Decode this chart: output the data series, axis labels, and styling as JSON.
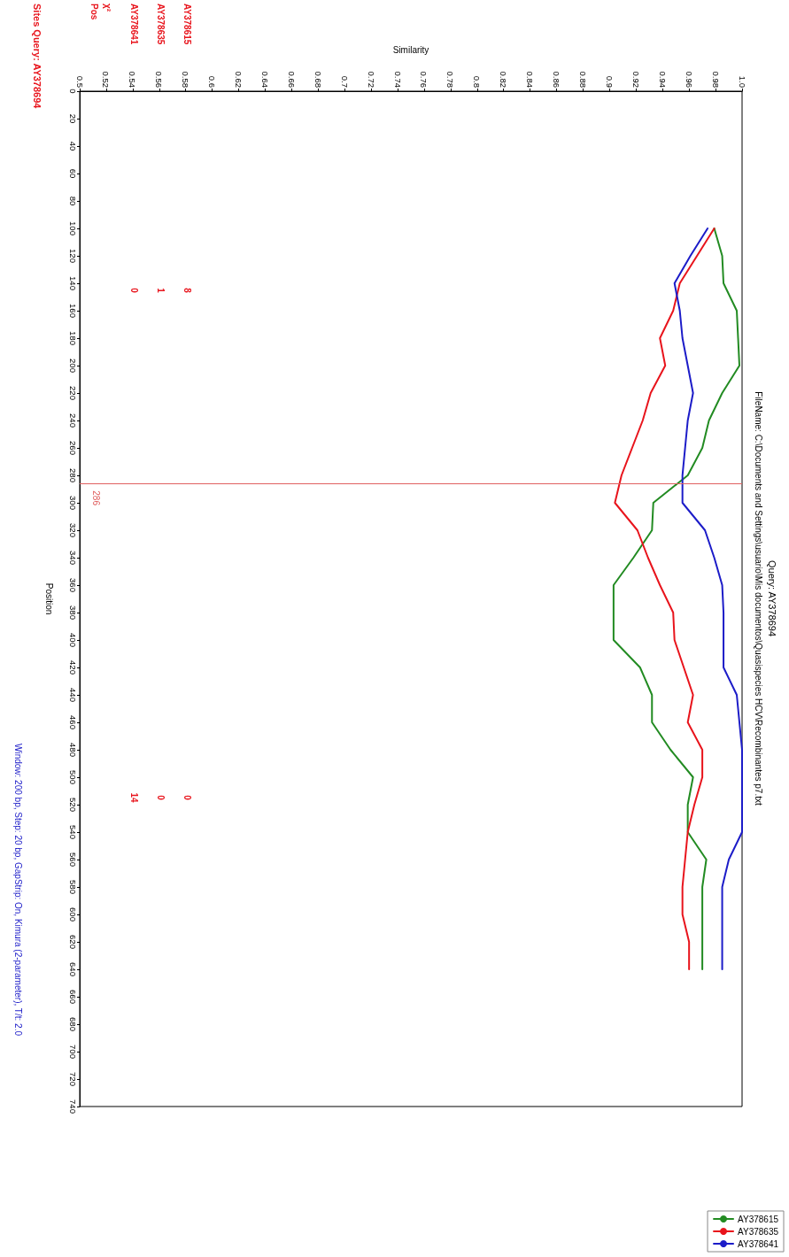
{
  "chart_data": {
    "type": "line",
    "orientation": "horizontal",
    "title": "Query: AY378694",
    "subtitle": "FileName: C:\\Documents and Settings\\usuario\\Mis documentos\\Quasispecies HCV\\Recombinantes p7.txt",
    "xlabel": "Similarity",
    "ylabel": "Position",
    "x": [
      100,
      120,
      140,
      160,
      180,
      200,
      220,
      240,
      260,
      280,
      300,
      320,
      340,
      360,
      380,
      400,
      420,
      440,
      460,
      480,
      500,
      520,
      540,
      560,
      580,
      600,
      620,
      640
    ],
    "series": [
      {
        "name": "AY378615",
        "color": "#228b22",
        "values": [
          0.979,
          0.985,
          0.986,
          0.996,
          0.997,
          0.998,
          0.985,
          0.975,
          0.97,
          0.959,
          0.933,
          0.932,
          0.918,
          0.903,
          0.903,
          0.903,
          0.923,
          0.932,
          0.932,
          0.946,
          0.963,
          0.959,
          0.959,
          0.973,
          0.97,
          0.97,
          0.97,
          0.97
        ]
      },
      {
        "name": "AY378635",
        "color": "#e8141c",
        "values": [
          0.979,
          0.966,
          0.953,
          0.948,
          0.938,
          0.942,
          0.931,
          0.925,
          0.917,
          0.909,
          0.904,
          0.921,
          0.929,
          0.938,
          0.948,
          0.949,
          0.956,
          0.963,
          0.959,
          0.97,
          0.97,
          0.964,
          0.959,
          0.957,
          0.955,
          0.955,
          0.96,
          0.96
        ]
      },
      {
        "name": "AY378641",
        "color": "#1c1cc8",
        "values": [
          0.974,
          0.961,
          0.949,
          0.953,
          0.955,
          0.959,
          0.963,
          0.959,
          0.957,
          0.955,
          0.955,
          0.972,
          0.979,
          0.985,
          0.986,
          0.986,
          0.986,
          0.996,
          0.998,
          1.0,
          1.0,
          1.0,
          1.0,
          0.99,
          0.985,
          0.985,
          0.985,
          0.985
        ]
      }
    ],
    "xlim": [
      0.5,
      1
    ],
    "xticks": [
      0.5,
      0.52,
      0.54,
      0.56,
      0.58,
      0.6,
      0.62,
      0.64,
      0.66,
      0.68,
      0.7,
      0.72,
      0.74,
      0.76,
      0.78,
      0.8,
      0.82,
      0.84,
      0.86,
      0.88,
      0.9,
      0.92,
      0.94,
      0.96,
      0.98,
      {
        "value": 1,
        "label": "1.0"
      }
    ],
    "ylim": [
      740,
      0
    ],
    "yticks": [
      0,
      20,
      40,
      60,
      80,
      100,
      120,
      140,
      160,
      180,
      200,
      220,
      240,
      260,
      280,
      300,
      320,
      340,
      360,
      380,
      400,
      420,
      440,
      460,
      480,
      500,
      520,
      540,
      560,
      580,
      600,
      620,
      640,
      660,
      680,
      700,
      720,
      740
    ],
    "ref_lines": [
      {
        "axis": "y",
        "value": 286,
        "label": "286",
        "color": "#e06060"
      }
    ],
    "annotations": [
      "AY378615",
      "AY378635",
      "AY378641",
      "χ²",
      "Pos",
      "8",
      "1",
      "0",
      "0",
      "0",
      "14",
      "Sites Query: AY378694",
      "Window: 200 bp, Step: 20 bp, GapStrip: On, Kimura (2-parameter), T/t: 2.0"
    ],
    "grid": false,
    "legend": "bottom right",
    "marker": "none",
    "line_style": "solid"
  }
}
